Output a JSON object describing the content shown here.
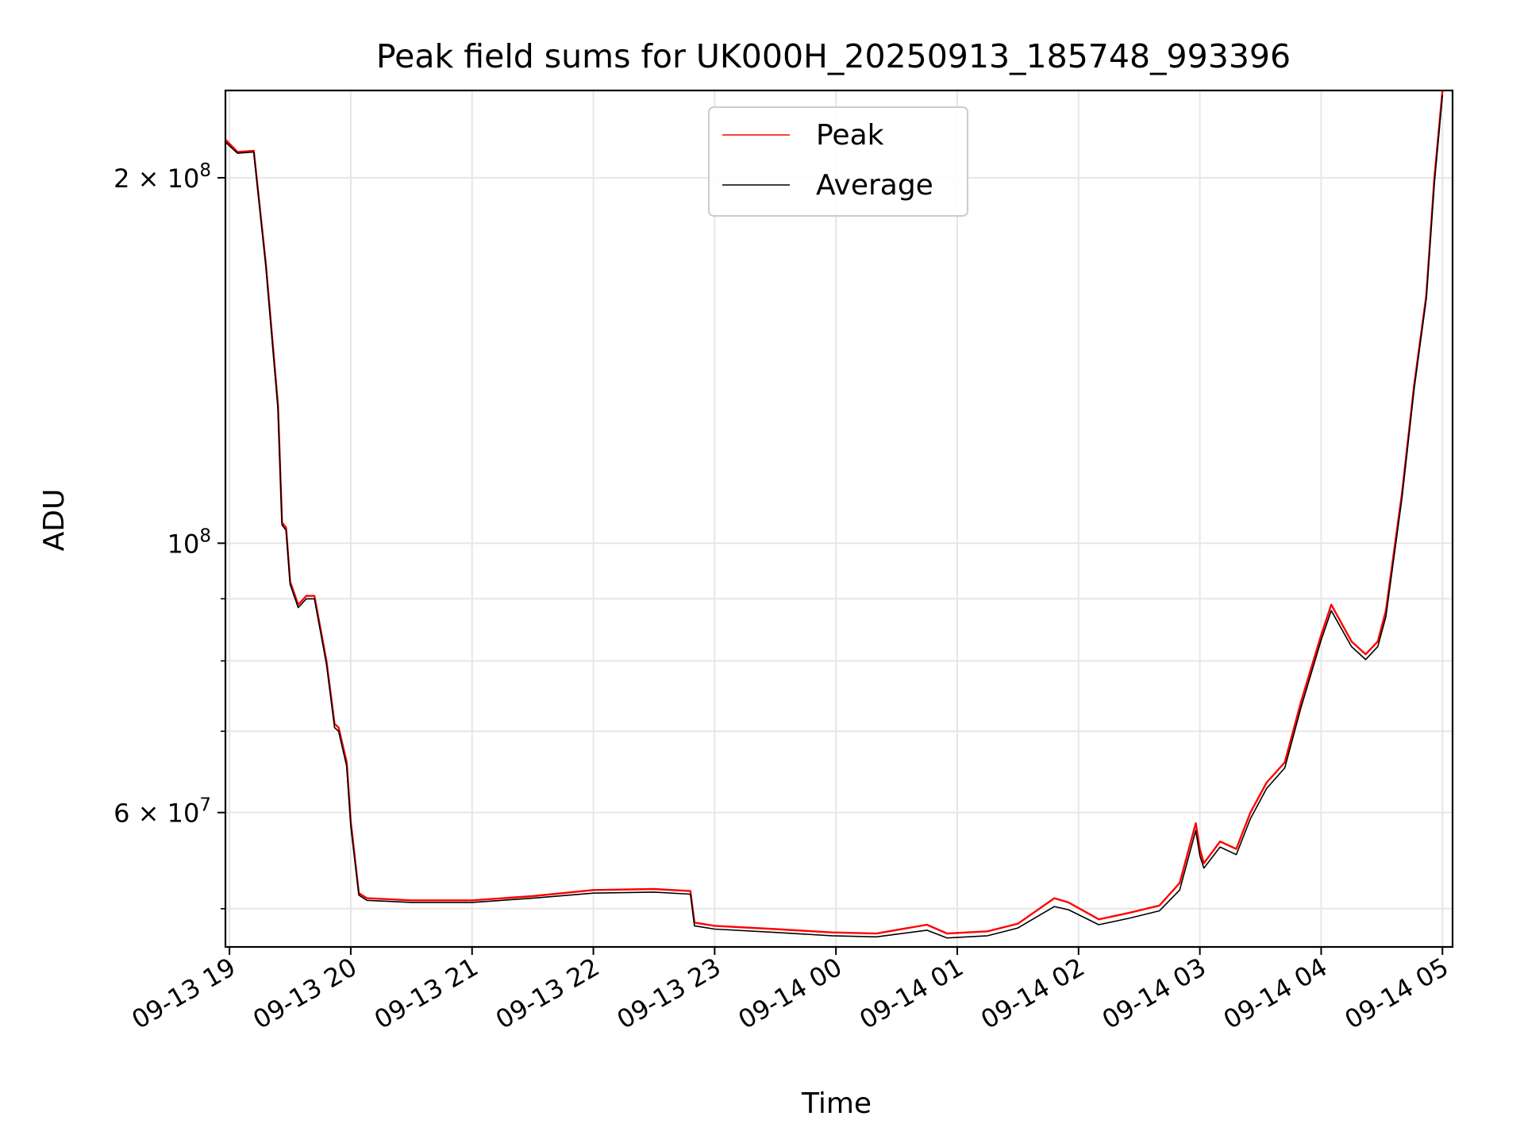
{
  "chart_data": {
    "type": "line",
    "title": "Peak field sums for UK000H_20250913_185748_993396",
    "xlabel": "Time",
    "ylabel": "ADU",
    "y_scale": "log",
    "xlim": [
      "2025-09-13 18:58",
      "2025-09-14 05:05"
    ],
    "ylim": [
      46500000,
      236000000
    ],
    "grid": true,
    "legend_position": "top-center",
    "x_ticks": [
      {
        "t": "2025-09-13 19:00",
        "label": "09-13 19"
      },
      {
        "t": "2025-09-13 20:00",
        "label": "09-13 20"
      },
      {
        "t": "2025-09-13 21:00",
        "label": "09-13 21"
      },
      {
        "t": "2025-09-13 22:00",
        "label": "09-13 22"
      },
      {
        "t": "2025-09-13 23:00",
        "label": "09-13 23"
      },
      {
        "t": "2025-09-14 00:00",
        "label": "09-14 00"
      },
      {
        "t": "2025-09-14 01:00",
        "label": "09-14 01"
      },
      {
        "t": "2025-09-14 02:00",
        "label": "09-14 02"
      },
      {
        "t": "2025-09-14 03:00",
        "label": "09-14 03"
      },
      {
        "t": "2025-09-14 04:00",
        "label": "09-14 04"
      },
      {
        "t": "2025-09-14 05:00",
        "label": "09-14 05"
      }
    ],
    "y_ticks_major": [
      {
        "value": 200000000,
        "mant": "2",
        "exp": "8"
      },
      {
        "value": 100000000,
        "mant": "",
        "exp": "8"
      },
      {
        "value": 60000000,
        "mant": "6",
        "exp": "7"
      }
    ],
    "y_ticks_minor": [
      50000000,
      70000000,
      80000000,
      90000000
    ],
    "series": [
      {
        "name": "Peak",
        "color": "#ff0000",
        "points": [
          [
            "2025-09-13 18:58",
            215000000
          ],
          [
            "2025-09-13 19:04",
            210000000
          ],
          [
            "2025-09-13 19:12",
            210500000
          ],
          [
            "2025-09-13 19:18",
            170000000
          ],
          [
            "2025-09-13 19:24",
            130000000
          ],
          [
            "2025-09-13 19:26",
            104000000
          ],
          [
            "2025-09-13 19:28",
            103000000
          ],
          [
            "2025-09-13 19:30",
            93000000
          ],
          [
            "2025-09-13 19:34",
            89000000
          ],
          [
            "2025-09-13 19:38",
            90500000
          ],
          [
            "2025-09-13 19:42",
            90500000
          ],
          [
            "2025-09-13 19:48",
            80000000
          ],
          [
            "2025-09-13 19:52",
            71000000
          ],
          [
            "2025-09-13 19:54",
            70500000
          ],
          [
            "2025-09-13 19:58",
            66000000
          ],
          [
            "2025-09-13 20:00",
            59000000
          ],
          [
            "2025-09-13 20:04",
            51500000
          ],
          [
            "2025-09-13 20:08",
            51000000
          ],
          [
            "2025-09-13 20:30",
            50800000
          ],
          [
            "2025-09-13 21:00",
            50800000
          ],
          [
            "2025-09-13 21:30",
            51200000
          ],
          [
            "2025-09-13 22:00",
            51800000
          ],
          [
            "2025-09-13 22:30",
            51900000
          ],
          [
            "2025-09-13 22:48",
            51700000
          ],
          [
            "2025-09-13 22:50",
            48700000
          ],
          [
            "2025-09-13 23:00",
            48400000
          ],
          [
            "2025-09-13 23:30",
            48100000
          ],
          [
            "2025-09-13 23:58",
            47800000
          ],
          [
            "2025-09-14 00:20",
            47700000
          ],
          [
            "2025-09-14 00:45",
            48500000
          ],
          [
            "2025-09-14 00:55",
            47700000
          ],
          [
            "2025-09-14 01:15",
            47900000
          ],
          [
            "2025-09-14 01:30",
            48600000
          ],
          [
            "2025-09-14 01:48",
            51000000
          ],
          [
            "2025-09-14 01:55",
            50600000
          ],
          [
            "2025-09-14 02:10",
            49000000
          ],
          [
            "2025-09-14 02:25",
            49600000
          ],
          [
            "2025-09-14 02:40",
            50300000
          ],
          [
            "2025-09-14 02:50",
            52500000
          ],
          [
            "2025-09-14 02:58",
            58800000
          ],
          [
            "2025-09-14 03:00",
            56000000
          ],
          [
            "2025-09-14 03:02",
            54500000
          ],
          [
            "2025-09-14 03:10",
            56800000
          ],
          [
            "2025-09-14 03:18",
            56000000
          ],
          [
            "2025-09-14 03:25",
            60000000
          ],
          [
            "2025-09-14 03:33",
            63500000
          ],
          [
            "2025-09-14 03:42",
            66000000
          ],
          [
            "2025-09-14 03:50",
            74000000
          ],
          [
            "2025-09-14 04:00",
            84000000
          ],
          [
            "2025-09-14 04:05",
            89000000
          ],
          [
            "2025-09-14 04:15",
            83000000
          ],
          [
            "2025-09-14 04:22",
            81000000
          ],
          [
            "2025-09-14 04:28",
            83000000
          ],
          [
            "2025-09-14 04:32",
            88000000
          ],
          [
            "2025-09-14 04:40",
            110000000
          ],
          [
            "2025-09-14 04:46",
            135000000
          ],
          [
            "2025-09-14 04:52",
            160000000
          ],
          [
            "2025-09-14 04:56",
            200000000
          ],
          [
            "2025-09-14 05:00",
            236000000
          ]
        ]
      },
      {
        "name": "Average",
        "color": "#000000",
        "points": [
          [
            "2025-09-13 18:58",
            214000000
          ],
          [
            "2025-09-13 19:04",
            209500000
          ],
          [
            "2025-09-13 19:12",
            210000000
          ],
          [
            "2025-09-13 19:18",
            169000000
          ],
          [
            "2025-09-13 19:24",
            129000000
          ],
          [
            "2025-09-13 19:26",
            103500000
          ],
          [
            "2025-09-13 19:28",
            102500000
          ],
          [
            "2025-09-13 19:30",
            92500000
          ],
          [
            "2025-09-13 19:34",
            88500000
          ],
          [
            "2025-09-13 19:38",
            90000000
          ],
          [
            "2025-09-13 19:42",
            90000000
          ],
          [
            "2025-09-13 19:48",
            79500000
          ],
          [
            "2025-09-13 19:52",
            70500000
          ],
          [
            "2025-09-13 19:54",
            70000000
          ],
          [
            "2025-09-13 19:58",
            65500000
          ],
          [
            "2025-09-13 20:00",
            58500000
          ],
          [
            "2025-09-13 20:04",
            51300000
          ],
          [
            "2025-09-13 20:08",
            50800000
          ],
          [
            "2025-09-13 20:30",
            50600000
          ],
          [
            "2025-09-13 21:00",
            50600000
          ],
          [
            "2025-09-13 21:30",
            51000000
          ],
          [
            "2025-09-13 22:00",
            51500000
          ],
          [
            "2025-09-13 22:30",
            51600000
          ],
          [
            "2025-09-13 22:48",
            51400000
          ],
          [
            "2025-09-13 22:50",
            48400000
          ],
          [
            "2025-09-13 23:00",
            48100000
          ],
          [
            "2025-09-13 23:30",
            47800000
          ],
          [
            "2025-09-13 23:58",
            47500000
          ],
          [
            "2025-09-14 00:20",
            47400000
          ],
          [
            "2025-09-14 00:45",
            48000000
          ],
          [
            "2025-09-14 00:55",
            47300000
          ],
          [
            "2025-09-14 01:15",
            47500000
          ],
          [
            "2025-09-14 01:30",
            48200000
          ],
          [
            "2025-09-14 01:48",
            50200000
          ],
          [
            "2025-09-14 01:55",
            49900000
          ],
          [
            "2025-09-14 02:10",
            48500000
          ],
          [
            "2025-09-14 02:25",
            49100000
          ],
          [
            "2025-09-14 02:40",
            49800000
          ],
          [
            "2025-09-14 02:50",
            51800000
          ],
          [
            "2025-09-14 02:58",
            58000000
          ],
          [
            "2025-09-14 03:00",
            55300000
          ],
          [
            "2025-09-14 03:02",
            54000000
          ],
          [
            "2025-09-14 03:10",
            56200000
          ],
          [
            "2025-09-14 03:18",
            55400000
          ],
          [
            "2025-09-14 03:25",
            59300000
          ],
          [
            "2025-09-14 03:33",
            62800000
          ],
          [
            "2025-09-14 03:42",
            65300000
          ],
          [
            "2025-09-14 03:50",
            73200000
          ],
          [
            "2025-09-14 04:00",
            83200000
          ],
          [
            "2025-09-14 04:05",
            88000000
          ],
          [
            "2025-09-14 04:15",
            82200000
          ],
          [
            "2025-09-14 04:22",
            80200000
          ],
          [
            "2025-09-14 04:28",
            82200000
          ],
          [
            "2025-09-14 04:32",
            87000000
          ],
          [
            "2025-09-14 04:40",
            109000000
          ],
          [
            "2025-09-14 04:46",
            134000000
          ],
          [
            "2025-09-14 04:52",
            159000000
          ],
          [
            "2025-09-14 04:56",
            198000000
          ],
          [
            "2025-09-14 05:00",
            234000000
          ]
        ]
      }
    ]
  }
}
